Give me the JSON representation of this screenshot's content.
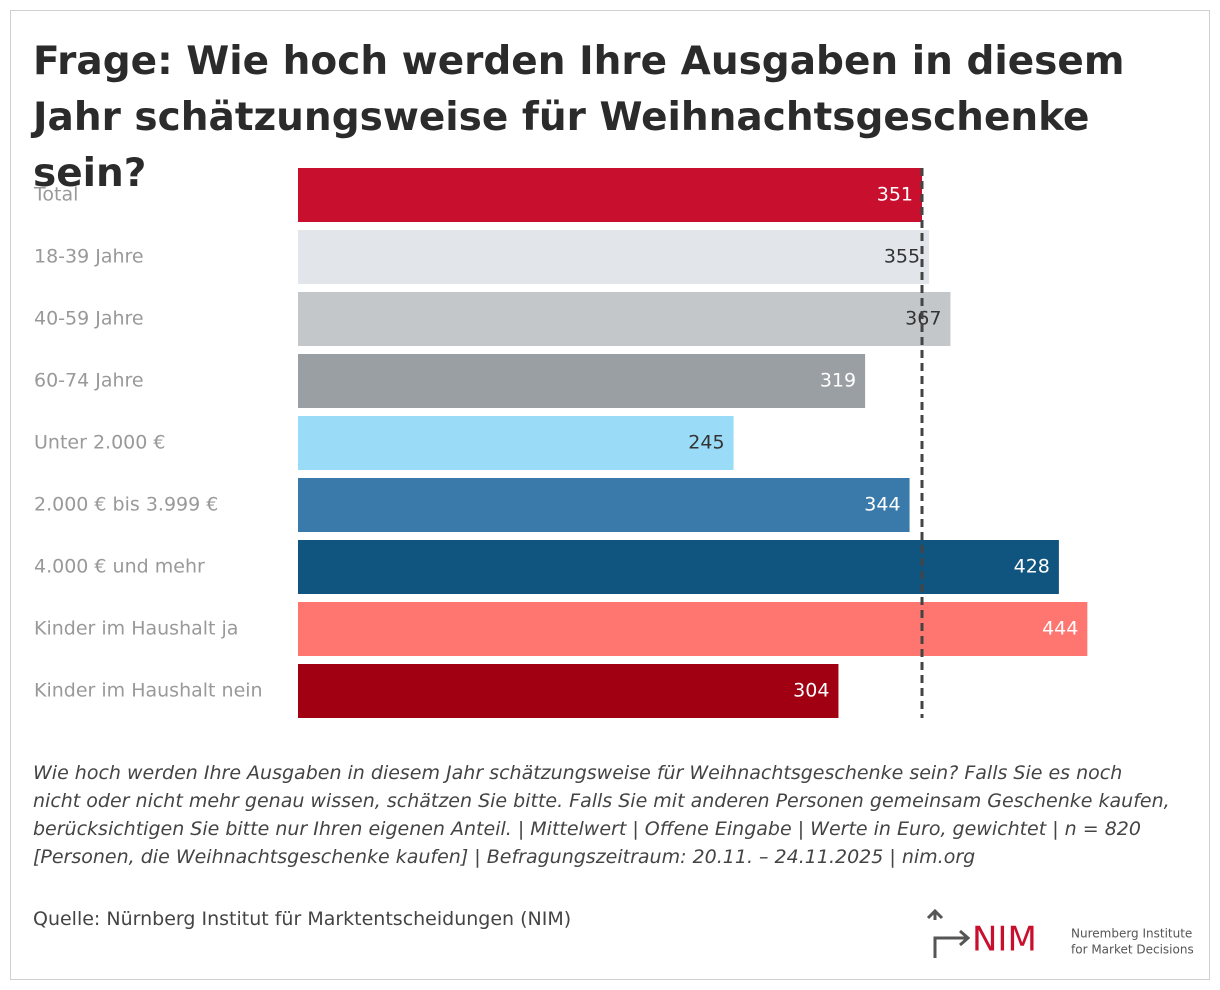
{
  "chart_data": {
    "type": "bar",
    "title": "Frage: Wie hoch werden Ihre Ausgaben in diesem Jahr schätzungsweise für Weihnachtsgeschenke sein?",
    "categories": [
      "Total",
      "18-39 Jahre",
      "40-59 Jahre",
      "60-74 Jahre",
      "Unter 2.000 €",
      "2.000 € bis 3.999 €",
      "4.000 € und mehr",
      "Kinder im Haushalt ja",
      "Kinder im Haushalt nein"
    ],
    "values": [
      351,
      355,
      367,
      319,
      245,
      344,
      428,
      444,
      304
    ],
    "colors": [
      "#c8102e",
      "#e2e5ea",
      "#c4c7ca",
      "#9a9fa3",
      "#9adcf8",
      "#3a7aab",
      "#10557f",
      "#ff7570",
      "#a00012"
    ],
    "footnote": "Wie hoch werden Ihre Ausgaben in diesem Jahr schätzungsweise für Weihnachtsgeschenke sein? Falls Sie es noch nicht oder nicht mehr genau wissen, schätzen Sie bitte. Falls Sie mit anderen Personen gemeinsam Geschenke kaufen, berücksichtigen Sie bitte nur Ihren eigenen Anteil. | Mittelwert | Offene Eingabe | Werte in Euro, gewichtet | n = 820 [Personen, die Weihnachtsgeschenke kaufen] | Befragungszeitraum: 20.11. – 24.11.2025 | nim.org",
    "source": "Quelle: Nürnberg Institut für Marktentscheidungen (NIM)",
    "logo": {
      "name": "NIM",
      "line1": "Nuremberg Institute",
      "line2": "for Market Decisions"
    }
  }
}
